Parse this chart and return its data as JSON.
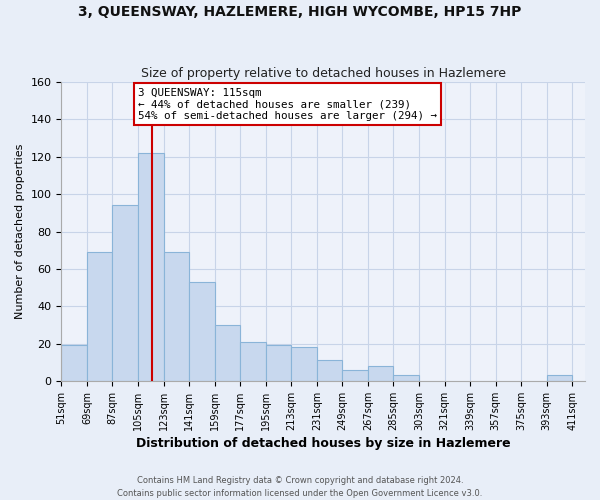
{
  "title": "3, QUEENSWAY, HAZLEMERE, HIGH WYCOMBE, HP15 7HP",
  "subtitle": "Size of property relative to detached houses in Hazlemere",
  "xlabel": "Distribution of detached houses by size in Hazlemere",
  "ylabel": "Number of detached properties",
  "bar_values": [
    19,
    69,
    94,
    122,
    69,
    53,
    30,
    21,
    19,
    18,
    11,
    6,
    8,
    3,
    0,
    0,
    0,
    0,
    3
  ],
  "bar_left_edges": [
    51,
    69,
    87,
    105,
    123,
    141,
    159,
    177,
    195,
    213,
    231,
    249,
    267,
    285,
    303,
    321,
    339,
    357,
    393
  ],
  "bin_width": 18,
  "bar_color": "#c8d8ee",
  "bar_edge_color": "#8ab4d8",
  "x_tick_labels": [
    "51sqm",
    "69sqm",
    "87sqm",
    "105sqm",
    "123sqm",
    "141sqm",
    "159sqm",
    "177sqm",
    "195sqm",
    "213sqm",
    "231sqm",
    "249sqm",
    "267sqm",
    "285sqm",
    "303sqm",
    "321sqm",
    "339sqm",
    "357sqm",
    "375sqm",
    "393sqm",
    "411sqm"
  ],
  "x_tick_positions": [
    51,
    69,
    87,
    105,
    123,
    141,
    159,
    177,
    195,
    213,
    231,
    249,
    267,
    285,
    303,
    321,
    339,
    357,
    375,
    393,
    411
  ],
  "ylim": [
    0,
    160
  ],
  "xlim": [
    51,
    420
  ],
  "yticks": [
    0,
    20,
    40,
    60,
    80,
    100,
    120,
    140,
    160
  ],
  "annotation_title": "3 QUEENSWAY: 115sqm",
  "annotation_line1": "← 44% of detached houses are smaller (239)",
  "annotation_line2": "54% of semi-detached houses are larger (294) →",
  "annotation_box_facecolor": "#ffffff",
  "annotation_border_color": "#cc0000",
  "vline_color": "#cc0000",
  "vline_x": 115,
  "grid_color": "#c8d4e8",
  "background_color": "#e8eef8",
  "plot_bg_color": "#eef2fa",
  "footer_line1": "Contains HM Land Registry data © Crown copyright and database right 2024.",
  "footer_line2": "Contains public sector information licensed under the Open Government Licence v3.0."
}
